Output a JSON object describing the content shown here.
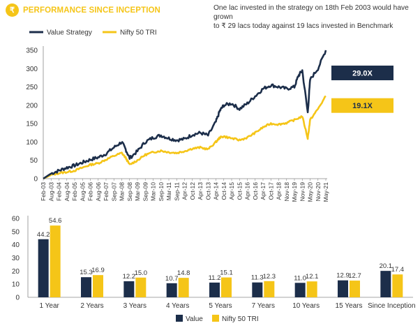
{
  "header": {
    "icon": "rupee-coin-icon",
    "icon_glyph": "₹",
    "title": "PERFORMANCE SINCE INCEPTION",
    "note_line1": "One lac invested in the strategy on 18th Feb 2003 would have grown",
    "note_line2": "to ₹ 29 lacs today against 19 lacs invested in Benchmark"
  },
  "colors": {
    "value": "#1c2e4a",
    "nifty": "#f5c518",
    "accent": "#f5c518",
    "axis": "#888888"
  },
  "chart_data": [
    {
      "type": "line",
      "title": "",
      "xlabel": "",
      "ylabel": "",
      "ylim": [
        0,
        350
      ],
      "yticks": [
        0,
        50,
        100,
        150,
        200,
        250,
        300,
        350
      ],
      "grid": false,
      "legend": "top-left",
      "x_tick_labels": [
        "Feb-03",
        "Aug-03",
        "Feb-04",
        "Aug-04",
        "Feb-05",
        "Aug-05",
        "Feb-06",
        "Aug-06",
        "Feb-07",
        "Sep-07",
        "Mar-08",
        "Sep-08",
        "Mar-09",
        "Sep-09",
        "Mar-10",
        "Sep-10",
        "Mar-11",
        "Sep-11",
        "Apr-12",
        "Oct-12",
        "Apr-13",
        "Oct-13",
        "Apr-14",
        "Oct-14",
        "Apr-15",
        "Oct-15",
        "Apr-16",
        "Oct-16",
        "Apr-17",
        "Oct-17",
        "Apr-18",
        "Nov-18",
        "May-19",
        "Nov-19",
        "May-20",
        "Nov-20",
        "May-21"
      ],
      "series": [
        {
          "name": "Value Strategy",
          "end_label": "29.0X",
          "points": [
            [
              0,
              0
            ],
            [
              1,
              14
            ],
            [
              2,
              22
            ],
            [
              3,
              30
            ],
            [
              4,
              36
            ],
            [
              5,
              44
            ],
            [
              6,
              52
            ],
            [
              7,
              58
            ],
            [
              8,
              68
            ],
            [
              9,
              85
            ],
            [
              10,
              100
            ],
            [
              10.5,
              80
            ],
            [
              11,
              56
            ],
            [
              12,
              75
            ],
            [
              13,
              100
            ],
            [
              14,
              112
            ],
            [
              15,
              118
            ],
            [
              16,
              110
            ],
            [
              17,
              105
            ],
            [
              18,
              108
            ],
            [
              19,
              120
            ],
            [
              20,
              125
            ],
            [
              21,
              118
            ],
            [
              22,
              155
            ],
            [
              22.5,
              185
            ],
            [
              23,
              200
            ],
            [
              24,
              205
            ],
            [
              25,
              190
            ],
            [
              26,
              205
            ],
            [
              27,
              225
            ],
            [
              28,
              245
            ],
            [
              29,
              255
            ],
            [
              30,
              250
            ],
            [
              31,
              245
            ],
            [
              32,
              250
            ],
            [
              32.5,
              280
            ],
            [
              33,
              295
            ],
            [
              33.7,
              180
            ],
            [
              34,
              270
            ],
            [
              35,
              300
            ],
            [
              36,
              350
            ]
          ]
        },
        {
          "name": "Nifty 50 TRI",
          "end_label": "19.1X",
          "points": [
            [
              0,
              0
            ],
            [
              1,
              10
            ],
            [
              2,
              15
            ],
            [
              3,
              18
            ],
            [
              4,
              22
            ],
            [
              5,
              30
            ],
            [
              6,
              38
            ],
            [
              7,
              42
            ],
            [
              8,
              52
            ],
            [
              9,
              62
            ],
            [
              10,
              70
            ],
            [
              10.5,
              57
            ],
            [
              11,
              38
            ],
            [
              12,
              50
            ],
            [
              13,
              65
            ],
            [
              14,
              72
            ],
            [
              15,
              76
            ],
            [
              16,
              72
            ],
            [
              17,
              70
            ],
            [
              18,
              75
            ],
            [
              19,
              82
            ],
            [
              20,
              85
            ],
            [
              21,
              80
            ],
            [
              22,
              100
            ],
            [
              22.5,
              112
            ],
            [
              23,
              115
            ],
            [
              24,
              110
            ],
            [
              25,
              105
            ],
            [
              26,
              112
            ],
            [
              27,
              125
            ],
            [
              28,
              140
            ],
            [
              29,
              150
            ],
            [
              30,
              148
            ],
            [
              31,
              152
            ],
            [
              32,
              160
            ],
            [
              33,
              170
            ],
            [
              33.7,
              110
            ],
            [
              34,
              160
            ],
            [
              35,
              190
            ],
            [
              36,
              225
            ]
          ]
        }
      ]
    },
    {
      "type": "bar",
      "title": "",
      "xlabel": "",
      "ylabel": "",
      "ylim": [
        0,
        60
      ],
      "yticks": [
        0,
        10,
        20,
        30,
        40,
        50,
        60
      ],
      "grid": false,
      "legend": "bottom-center",
      "categories": [
        "1 Year",
        "2 Years",
        "3 Years",
        "4 Years",
        "5 Years",
        "7 Years",
        "10 Years",
        "15 Years",
        "Since Inception"
      ],
      "series": [
        {
          "name": "Value",
          "values": [
            44.2,
            15.3,
            12.2,
            10.7,
            11.2,
            11.3,
            11.0,
            12.9,
            20.1
          ],
          "labels": [
            "44.2",
            "15.3",
            "12.2",
            "10.7",
            "11.2",
            "11.3",
            "11.0",
            "12.9",
            "20.1"
          ]
        },
        {
          "name": "Nifty 50 TRI",
          "values": [
            54.6,
            16.9,
            15.0,
            14.8,
            15.1,
            12.3,
            12.1,
            12.7,
            17.4
          ],
          "labels": [
            "54.6",
            "16.9",
            "15.0",
            "14.8",
            "15.1",
            "12.3",
            "12.1",
            "12.7",
            "17.4"
          ]
        }
      ]
    }
  ]
}
